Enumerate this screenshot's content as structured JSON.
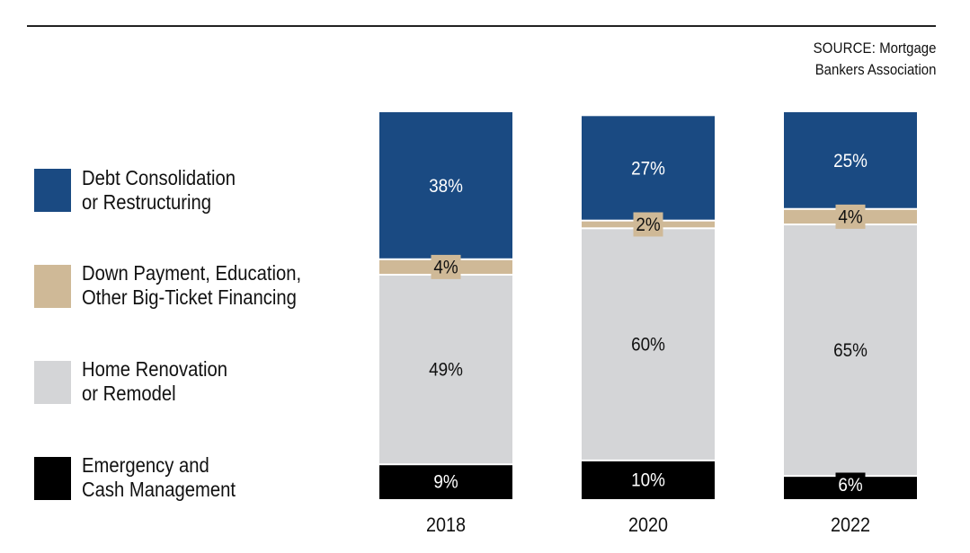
{
  "source": {
    "prefix": "SOURCE:",
    "line1": "Mortgage",
    "line2": "Bankers Association"
  },
  "legend": [
    {
      "line1": "Debt Consolidation",
      "line2": "or Restructuring",
      "color": "#1a4a82"
    },
    {
      "line1": "Down Payment, Education,",
      "line2": "Other Big-Ticket Financing",
      "color": "#cfb997"
    },
    {
      "line1": "Home Renovation",
      "line2": "or Remodel",
      "color": "#d4d5d7"
    },
    {
      "line1": "Emergency and",
      "line2": "Cash Management",
      "color": "#000000"
    }
  ],
  "chart_data": {
    "type": "bar",
    "stacked": true,
    "categories": [
      "2018",
      "2020",
      "2022"
    ],
    "series": [
      {
        "name": "Emergency and Cash Management",
        "values": [
          9,
          10,
          6
        ],
        "labels": [
          "9%",
          "10%",
          "6%"
        ],
        "color": "#000000"
      },
      {
        "name": "Home Renovation or Remodel",
        "values": [
          49,
          60,
          65
        ],
        "labels": [
          "49%",
          "60%",
          "65%"
        ],
        "color": "#d4d5d7"
      },
      {
        "name": "Down Payment, Education, Other Big-Ticket Financing",
        "values": [
          4,
          2,
          4
        ],
        "labels": [
          "4%",
          "2%",
          "4%"
        ],
        "color": "#cfb997"
      },
      {
        "name": "Debt Consolidation or Restructuring",
        "values": [
          38,
          27,
          25
        ],
        "labels": [
          "38%",
          "27%",
          "25%"
        ],
        "color": "#1a4a82"
      }
    ],
    "ylim": [
      0,
      100
    ],
    "grid": false,
    "legend_position": "left"
  }
}
